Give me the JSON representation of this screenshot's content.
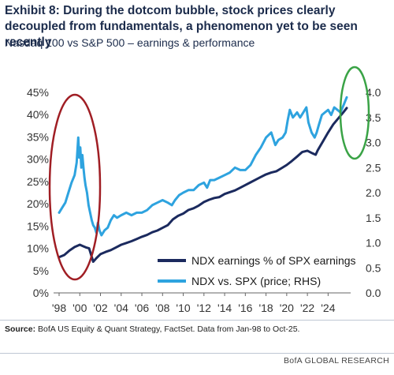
{
  "header": {
    "title": "Exhibit 8: During the dotcom bubble, stock prices clearly decoupled from fundamentals, a phenomenon yet to be seen recently",
    "subtitle": "Nasdaq 100 vs S&P 500 – earnings & performance"
  },
  "footer": {
    "source_label": "Source:",
    "source_text": " BofA US Equity & Quant Strategy, FactSet. Data from Jan-98 to Oct-25.",
    "brand": "BofA GLOBAL RESEARCH"
  },
  "colors": {
    "earnings": "#1b2a5e",
    "price": "#2ea3df",
    "circle_left": "#a01e24",
    "circle_right": "#3aa346"
  },
  "chart_data": {
    "type": "line",
    "x_ticks": [
      "'98",
      "'00",
      "'02",
      "'04",
      "'06",
      "'08",
      "'10",
      "'12",
      "'14",
      "'16",
      "'18",
      "'20",
      "'22",
      "'24"
    ],
    "y_left_ticks": [
      "0%",
      "5%",
      "10%",
      "15%",
      "20%",
      "25%",
      "30%",
      "35%",
      "40%",
      "45%"
    ],
    "y_right_ticks": [
      "0.0",
      "0.5",
      "1.0",
      "1.5",
      "2.0",
      "2.5",
      "3.0",
      "3.5",
      "4.0"
    ],
    "ylim_left": [
      0,
      45
    ],
    "ylim_right": [
      0,
      4.0
    ],
    "xlim": [
      1998,
      2025.8
    ],
    "series": [
      {
        "name": "NDX earnings % of SPX earnings",
        "axis": "left",
        "x": [
          1998.0,
          1998.5,
          1999.0,
          1999.5,
          2000.0,
          2000.3,
          2000.6,
          2000.9,
          2001.1,
          2001.3,
          2001.6,
          2002.0,
          2002.5,
          2003.0,
          2003.5,
          2004.0,
          2004.5,
          2005.0,
          2005.5,
          2006.0,
          2006.5,
          2007.0,
          2007.5,
          2008.0,
          2008.5,
          2009.0,
          2009.5,
          2010.0,
          2010.5,
          2011.0,
          2011.5,
          2012.0,
          2012.5,
          2013.0,
          2013.5,
          2014.0,
          2014.5,
          2015.0,
          2015.5,
          2016.0,
          2016.5,
          2017.0,
          2017.5,
          2018.0,
          2018.5,
          2019.0,
          2019.5,
          2020.0,
          2020.5,
          2021.0,
          2021.5,
          2022.0,
          2022.5,
          2022.8,
          2023.0,
          2023.5,
          2024.0,
          2024.5,
          2025.0,
          2025.5,
          2025.8
        ],
        "values": [
          8.0,
          8.5,
          9.5,
          10.3,
          10.8,
          10.5,
          10.2,
          10.0,
          8.5,
          7.0,
          7.8,
          8.7,
          9.2,
          9.6,
          10.2,
          10.8,
          11.2,
          11.6,
          12.1,
          12.6,
          13.0,
          13.6,
          14.0,
          14.6,
          15.2,
          16.5,
          17.3,
          17.8,
          18.6,
          19.0,
          19.6,
          20.4,
          20.9,
          21.3,
          21.5,
          22.2,
          22.6,
          23.0,
          23.6,
          24.2,
          24.8,
          25.4,
          26.0,
          26.6,
          27.0,
          27.3,
          28.0,
          28.7,
          29.6,
          30.6,
          31.6,
          31.9,
          31.3,
          31.0,
          32.0,
          34.0,
          36.0,
          37.8,
          39.2,
          40.6,
          41.5
        ]
      },
      {
        "name": "NDX vs. SPX (price; RHS)",
        "axis": "right",
        "x": [
          1998.0,
          1998.3,
          1998.6,
          1998.9,
          1999.2,
          1999.5,
          1999.7,
          1999.85,
          1999.95,
          2000.05,
          2000.15,
          2000.25,
          2000.35,
          2000.45,
          2000.55,
          2000.7,
          2000.85,
          2001.0,
          2001.15,
          2001.3,
          2001.45,
          2001.6,
          2001.75,
          2001.9,
          2002.1,
          2002.4,
          2002.7,
          2003.0,
          2003.3,
          2003.6,
          2004.0,
          2004.5,
          2005.0,
          2005.5,
          2006.0,
          2006.5,
          2007.0,
          2007.5,
          2008.0,
          2008.5,
          2008.9,
          2009.2,
          2009.6,
          2010.0,
          2010.5,
          2011.0,
          2011.5,
          2012.0,
          2012.3,
          2012.6,
          2013.0,
          2013.5,
          2014.0,
          2014.5,
          2015.0,
          2015.5,
          2016.0,
          2016.5,
          2017.0,
          2017.5,
          2018.0,
          2018.5,
          2018.9,
          2019.2,
          2019.6,
          2019.9,
          2020.1,
          2020.3,
          2020.6,
          2020.8,
          2021.0,
          2021.3,
          2021.6,
          2021.9,
          2022.1,
          2022.4,
          2022.7,
          2022.9,
          2023.1,
          2023.4,
          2023.7,
          2024.0,
          2024.3,
          2024.6,
          2024.9,
          2025.2,
          2025.5,
          2025.8
        ],
        "values": [
          1.6,
          1.7,
          1.8,
          2.0,
          2.2,
          2.35,
          2.6,
          3.1,
          2.7,
          2.9,
          2.5,
          2.75,
          2.5,
          2.3,
          2.15,
          2.0,
          1.75,
          1.6,
          1.45,
          1.35,
          1.3,
          1.2,
          1.4,
          1.25,
          1.15,
          1.25,
          1.3,
          1.45,
          1.55,
          1.5,
          1.55,
          1.6,
          1.55,
          1.6,
          1.6,
          1.65,
          1.75,
          1.8,
          1.85,
          1.8,
          1.75,
          1.85,
          1.95,
          2.0,
          2.05,
          2.05,
          2.15,
          2.2,
          2.1,
          2.25,
          2.25,
          2.3,
          2.35,
          2.4,
          2.5,
          2.45,
          2.45,
          2.55,
          2.75,
          2.9,
          3.1,
          3.2,
          2.95,
          3.05,
          3.1,
          3.2,
          3.45,
          3.65,
          3.5,
          3.55,
          3.6,
          3.5,
          3.6,
          3.7,
          3.4,
          3.2,
          3.1,
          3.2,
          3.35,
          3.55,
          3.6,
          3.65,
          3.55,
          3.7,
          3.65,
          3.6,
          3.75,
          3.9
        ]
      }
    ],
    "legend_position": "bottom-right"
  }
}
